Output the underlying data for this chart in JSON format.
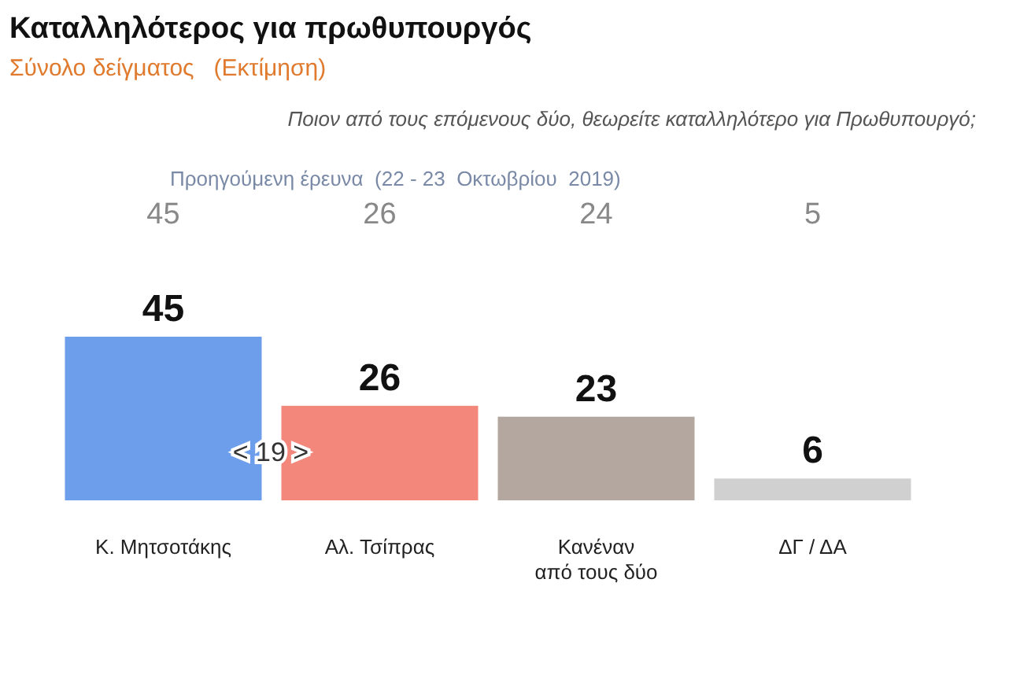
{
  "chart_data": {
    "type": "bar",
    "title": "Καταλληλότερος για πρωθυπουργός",
    "subtitle": "Σύνολο δείγματος   (Εκτίμηση)",
    "categories": [
      "Κ. Μητσοτάκης",
      "Αλ. Τσίπρας",
      "Κανέναν\nαπό τους δύο",
      "ΔΓ / ΔΑ"
    ],
    "values": [
      45,
      26,
      23,
      6
    ],
    "colors": [
      "#6d9eeb",
      "#f4877c",
      "#b4a7a0",
      "#d0d0d0"
    ],
    "data_labels": true,
    "annotations": [
      "Ποιον από τους επόμενους δύο, θεωρείτε καταλληλότερο για Πρωθυπουργό;",
      "Προηγούμενη έρευνα  (22 - 23  Οκτωβρίου  2019)",
      "45",
      "26",
      "24",
      "5",
      "< 19 >"
    ]
  }
}
